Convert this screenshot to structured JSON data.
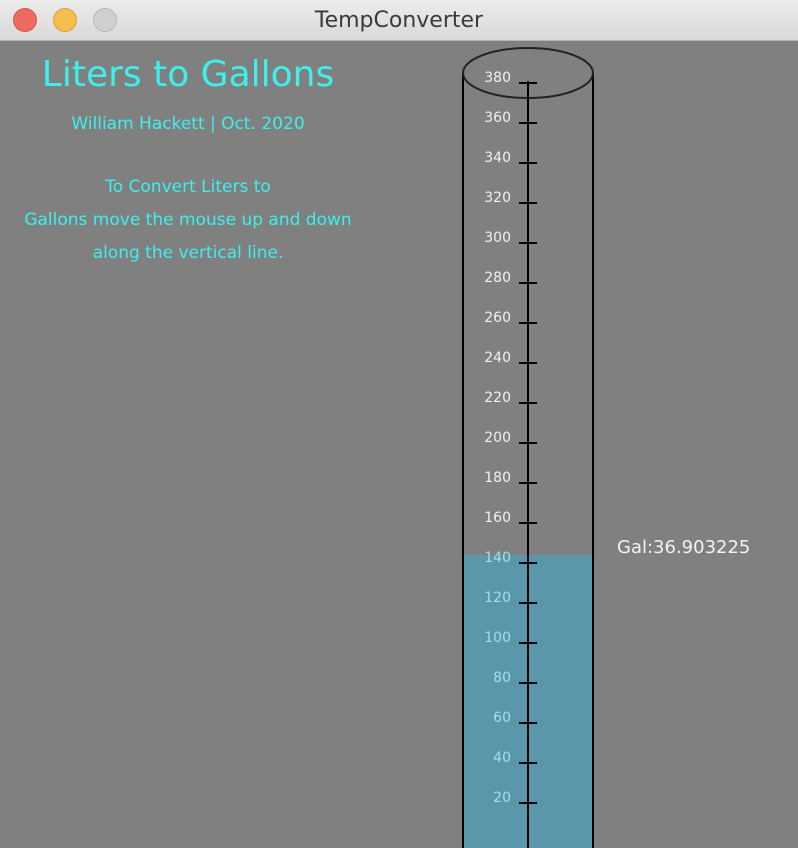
{
  "window": {
    "title": "TempConverter"
  },
  "header": {
    "title": "Liters to Gallons",
    "byline": "William Hackett | Oct. 2020"
  },
  "instructions": {
    "lines": [
      "To Convert Liters to",
      "Gallons move the mouse up and down",
      "along the vertical line."
    ]
  },
  "readout": {
    "text": "Gal:36.903225"
  },
  "gauge": {
    "min": 0,
    "max": 380,
    "level_liters": 140,
    "tick_step": 20,
    "tick_labels": [
      "380",
      "360",
      "340",
      "320",
      "300",
      "280",
      "260",
      "240",
      "220",
      "200",
      "180",
      "160",
      "140",
      "120",
      "100",
      "80",
      "60",
      "40",
      "20"
    ]
  },
  "colors": {
    "background": "#808080",
    "heading_text": "#3cf0ec",
    "readout_text": "#f2f2f2",
    "fill": "#5a97ab",
    "label_above_fill": "#f0f0f0",
    "label_in_fill": "#a8dcea"
  },
  "icons": {
    "close": "close-circle",
    "minimize": "minimize-circle",
    "zoom": "zoom-circle"
  }
}
